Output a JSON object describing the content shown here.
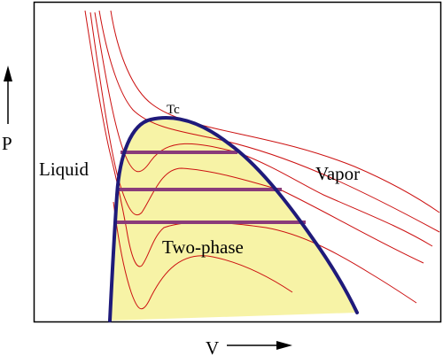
{
  "labels": {
    "critical_point": "Tc",
    "liquid": "Liquid",
    "vapor": "Vapor",
    "two_phase": "Two-phase",
    "pressure_axis": "P",
    "volume_axis": "V"
  },
  "colors": {
    "frame": "#000000",
    "coexistence_dome": "#1f1a7a",
    "two_phase_fill": "#f7f3a6",
    "isotherm": "#cc1111",
    "tie_line": "#8a3b7a"
  },
  "icons": {
    "pressure_arrow": "arrow-up-icon",
    "volume_arrow": "arrow-right-icon"
  }
}
